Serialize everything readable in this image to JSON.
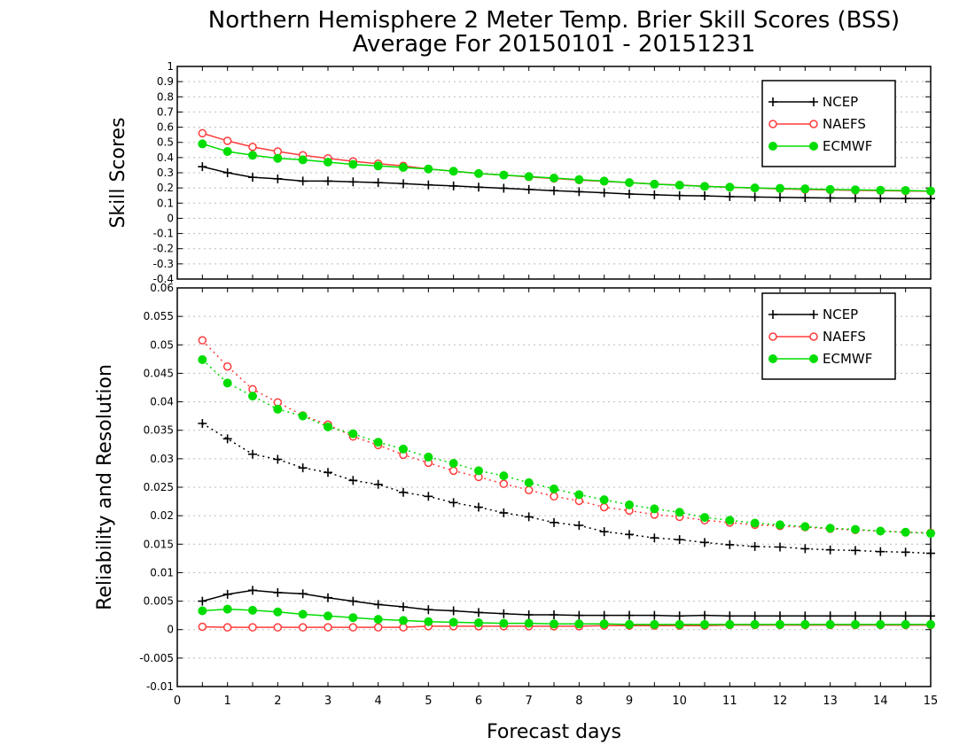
{
  "title_line1": "Northern Hemisphere 2 Meter Temp. Brier Skill Scores (BSS)",
  "title_line2": "Average For 20150101 - 20151231",
  "xlabel": "Forecast days",
  "colors": {
    "NCEP": "#000000",
    "NAEFS": "#ff3b3b",
    "ECMWF": "#00dd00"
  },
  "chart_data": [
    {
      "type": "line",
      "ylabel": "Skill Scores",
      "xlim": [
        0,
        15
      ],
      "ylim": [
        -0.4,
        1
      ],
      "yticks": [
        "-0.4",
        "-0.3",
        "-0.2",
        "-0.1",
        "0",
        "0.1",
        "0.2",
        "0.3",
        "0.4",
        "0.5",
        "0.6",
        "0.7",
        "0.8",
        "0.9",
        "1"
      ],
      "grid": true,
      "legend": {
        "position": "top-right",
        "entries": [
          "NCEP",
          "NAEFS",
          "ECMWF"
        ]
      },
      "x": [
        0.5,
        1,
        1.5,
        2,
        2.5,
        3,
        3.5,
        4,
        4.5,
        5,
        5.5,
        6,
        6.5,
        7,
        7.5,
        8,
        8.5,
        9,
        9.5,
        10,
        10.5,
        11,
        11.5,
        12,
        12.5,
        13,
        13.5,
        14,
        14.5,
        15
      ],
      "series": [
        {
          "name": "NCEP",
          "style": "solid",
          "marker": "plus",
          "values": [
            0.34,
            0.3,
            0.27,
            0.26,
            0.245,
            0.245,
            0.24,
            0.235,
            0.228,
            0.22,
            0.213,
            0.205,
            0.198,
            0.19,
            0.182,
            0.175,
            0.168,
            0.16,
            0.155,
            0.15,
            0.148,
            0.143,
            0.14,
            0.138,
            0.136,
            0.134,
            0.133,
            0.132,
            0.131,
            0.13
          ]
        },
        {
          "name": "NAEFS",
          "style": "solid",
          "marker": "open-circle",
          "values": [
            0.56,
            0.51,
            0.47,
            0.44,
            0.415,
            0.395,
            0.375,
            0.36,
            0.345,
            0.325,
            0.31,
            0.295,
            0.285,
            0.272,
            0.262,
            0.252,
            0.243,
            0.235,
            0.226,
            0.219,
            0.211,
            0.204,
            0.199,
            0.194,
            0.19,
            0.187,
            0.184,
            0.182,
            0.18,
            0.178
          ]
        },
        {
          "name": "ECMWF",
          "style": "solid",
          "marker": "filled-circle",
          "values": [
            0.49,
            0.44,
            0.415,
            0.395,
            0.385,
            0.37,
            0.355,
            0.345,
            0.335,
            0.325,
            0.31,
            0.295,
            0.285,
            0.275,
            0.265,
            0.255,
            0.245,
            0.235,
            0.225,
            0.218,
            0.21,
            0.205,
            0.2,
            0.197,
            0.194,
            0.19,
            0.188,
            0.185,
            0.183,
            0.18
          ]
        }
      ]
    },
    {
      "type": "line",
      "ylabel": "Reliability and Resolution",
      "xlim": [
        0,
        15
      ],
      "ylim": [
        -0.01,
        0.06
      ],
      "xticks": [
        "0",
        "1",
        "2",
        "3",
        "4",
        "5",
        "6",
        "7",
        "8",
        "9",
        "10",
        "11",
        "12",
        "13",
        "14",
        "15"
      ],
      "yticks": [
        "-0.01",
        "-0.005",
        "0",
        "0.005",
        "0.01",
        "0.015",
        "0.02",
        "0.025",
        "0.03",
        "0.035",
        "0.04",
        "0.045",
        "0.05",
        "0.055",
        "0.06"
      ],
      "grid": true,
      "legend": {
        "position": "top-right",
        "entries": [
          "NCEP",
          "NAEFS",
          "ECMWF"
        ]
      },
      "x": [
        0.5,
        1,
        1.5,
        2,
        2.5,
        3,
        3.5,
        4,
        4.5,
        5,
        5.5,
        6,
        6.5,
        7,
        7.5,
        8,
        8.5,
        9,
        9.5,
        10,
        10.5,
        11,
        11.5,
        12,
        12.5,
        13,
        13.5,
        14,
        14.5,
        15
      ],
      "series": [
        {
          "name": "NCEP",
          "style": "dotted",
          "marker": "plus",
          "values": [
            0.0362,
            0.0335,
            0.0308,
            0.0299,
            0.0284,
            0.0276,
            0.0262,
            0.0255,
            0.0241,
            0.0234,
            0.0223,
            0.0215,
            0.0205,
            0.0198,
            0.0188,
            0.0183,
            0.0172,
            0.0167,
            0.0161,
            0.0158,
            0.0153,
            0.0149,
            0.0146,
            0.0145,
            0.0142,
            0.014,
            0.0139,
            0.0137,
            0.0136,
            0.0134
          ]
        },
        {
          "name": "NAEFS",
          "style": "dotted",
          "marker": "open-circle",
          "values": [
            0.0508,
            0.0462,
            0.0422,
            0.0399,
            0.0376,
            0.036,
            0.0339,
            0.0324,
            0.0307,
            0.0293,
            0.0279,
            0.0268,
            0.0256,
            0.0245,
            0.0234,
            0.0226,
            0.0215,
            0.0209,
            0.0202,
            0.0198,
            0.0192,
            0.0188,
            0.0184,
            0.0182,
            0.018,
            0.0177,
            0.0175,
            0.0173,
            0.0171,
            0.017
          ]
        },
        {
          "name": "ECMWF",
          "style": "dotted",
          "marker": "filled-circle",
          "values": [
            0.0474,
            0.0433,
            0.041,
            0.0387,
            0.0375,
            0.0356,
            0.0344,
            0.0329,
            0.0317,
            0.0303,
            0.0292,
            0.0279,
            0.027,
            0.0258,
            0.0247,
            0.0237,
            0.0228,
            0.0219,
            0.0212,
            0.0206,
            0.0197,
            0.0192,
            0.0187,
            0.0184,
            0.0181,
            0.0178,
            0.0176,
            0.0173,
            0.0171,
            0.0169
          ]
        },
        {
          "name": "NCEP",
          "style": "solid",
          "marker": "plus",
          "values": [
            0.005,
            0.0062,
            0.0069,
            0.0065,
            0.0063,
            0.0056,
            0.005,
            0.0044,
            0.004,
            0.0035,
            0.0033,
            0.003,
            0.0028,
            0.0026,
            0.0026,
            0.0025,
            0.0025,
            0.0025,
            0.0025,
            0.0024,
            0.0025,
            0.0024,
            0.0024,
            0.0024,
            0.0024,
            0.0024,
            0.0024,
            0.0024,
            0.0024,
            0.0024
          ]
        },
        {
          "name": "NAEFS",
          "style": "solid",
          "marker": "open-circle",
          "values": [
            0.0005,
            0.0004,
            0.0004,
            0.0004,
            0.0004,
            0.0004,
            0.0004,
            0.0004,
            0.0004,
            0.0006,
            0.0006,
            0.0006,
            0.0006,
            0.0006,
            0.0006,
            0.0006,
            0.0007,
            0.0007,
            0.0007,
            0.0007,
            0.0007,
            0.0008,
            0.0008,
            0.0008,
            0.0008,
            0.0008,
            0.0008,
            0.0008,
            0.0008,
            0.0008
          ]
        },
        {
          "name": "ECMWF",
          "style": "solid",
          "marker": "filled-circle",
          "values": [
            0.0033,
            0.0036,
            0.0034,
            0.0031,
            0.0027,
            0.0024,
            0.0021,
            0.0018,
            0.0016,
            0.0014,
            0.0013,
            0.0012,
            0.0011,
            0.0011,
            0.001,
            0.001,
            0.001,
            0.0009,
            0.0009,
            0.0009,
            0.0009,
            0.0009,
            0.0009,
            0.0009,
            0.0009,
            0.0009,
            0.0009,
            0.0009,
            0.0009,
            0.0009
          ]
        }
      ]
    }
  ]
}
